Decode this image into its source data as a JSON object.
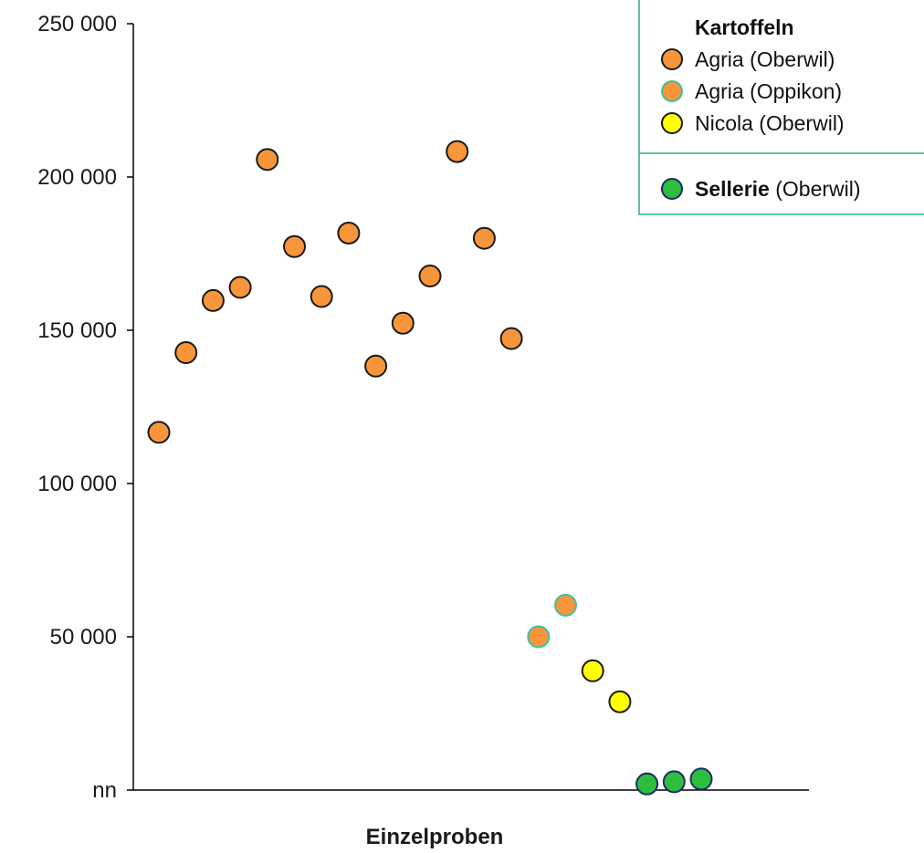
{
  "chart_data": {
    "type": "scatter",
    "xlabel": "Einzelproben",
    "ylim": [
      0,
      250000
    ],
    "y_ticks": [
      {
        "value": 0,
        "label": "nn"
      },
      {
        "value": 50000,
        "label": "50 000"
      },
      {
        "value": 100000,
        "label": "100 000"
      },
      {
        "value": 150000,
        "label": "150 000"
      },
      {
        "value": 200000,
        "label": "200 000"
      },
      {
        "value": 250000,
        "label": "250 000"
      }
    ],
    "grid": false,
    "legend_position": "top-right",
    "series": [
      {
        "key": "agria_oberwil",
        "fill": "#f7953a",
        "stroke": "#1a1a1a",
        "points": [
          [
            1,
            116700
          ],
          [
            2,
            142700
          ],
          [
            3,
            159700
          ],
          [
            4,
            164000
          ],
          [
            5,
            205700
          ],
          [
            6,
            177300
          ],
          [
            7,
            161000
          ],
          [
            8,
            181700
          ],
          [
            9,
            138300
          ],
          [
            10,
            152300
          ],
          [
            11,
            167700
          ],
          [
            12,
            208300
          ],
          [
            13,
            180000
          ],
          [
            14,
            147300
          ]
        ]
      },
      {
        "key": "agria_oppikon",
        "fill": "#f7953a",
        "stroke": "#3cc4a0",
        "points": [
          [
            15,
            50000
          ],
          [
            16,
            60300
          ]
        ]
      },
      {
        "key": "nicola_oberwil",
        "fill": "#ffff00",
        "stroke": "#1a1a1a",
        "points": [
          [
            17,
            38900
          ],
          [
            18,
            28800
          ]
        ]
      },
      {
        "key": "sellerie_oberwil",
        "fill": "#2ebd3d",
        "stroke": "#1c2a6e",
        "points": [
          [
            19,
            2000
          ],
          [
            20,
            2700
          ],
          [
            21,
            3600
          ]
        ]
      }
    ],
    "legend": {
      "title": "Kartoffeln",
      "entries": [
        {
          "series": "agria_oberwil",
          "label": "Agria (Oberwil)"
        },
        {
          "series": "agria_oppikon",
          "label": "Agria (Oppikon)"
        },
        {
          "series": "nicola_oberwil",
          "label": "Nicola (Oberwil)"
        }
      ],
      "extra_entry": {
        "series": "sellerie_oberwil",
        "label_bold": "Sellerie",
        "label_rest": " (Oberwil)"
      }
    }
  }
}
